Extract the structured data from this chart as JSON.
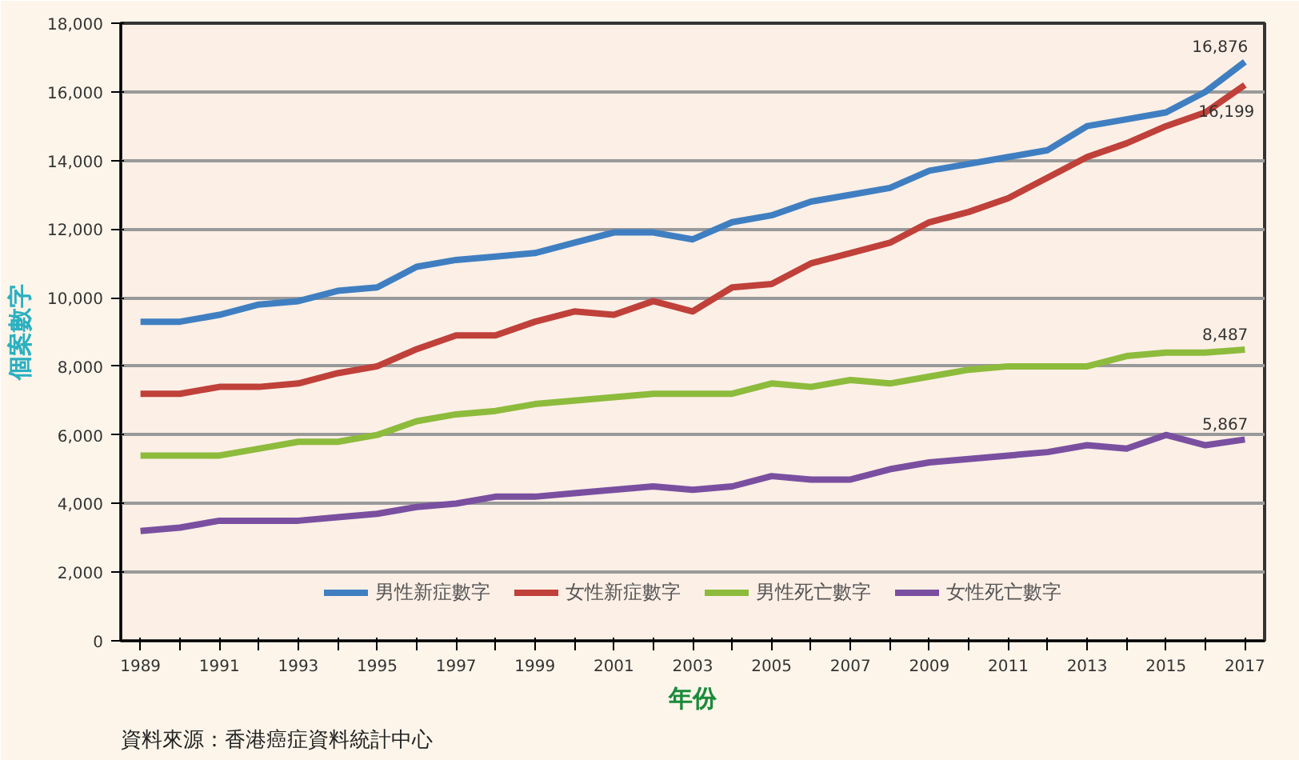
{
  "chart_data": {
    "type": "line",
    "xlabel": "年份",
    "ylabel": "個案數字",
    "annotations": [
      "資料來源：香港癌症資料統計中心"
    ],
    "categories": [
      "1989",
      null,
      "1991",
      null,
      "1993",
      null,
      "1995",
      null,
      "1997",
      null,
      "1999",
      null,
      "2001",
      null,
      "2003",
      null,
      "2005",
      null,
      "2007",
      null,
      "2009",
      null,
      "2011",
      null,
      "2013",
      null,
      "2015",
      null,
      "2017"
    ],
    "series": [
      {
        "name": "男性新症數字",
        "color": "#3f7fc1",
        "values": [
          9300,
          9300,
          9500,
          9800,
          9900,
          10200,
          10300,
          10900,
          11100,
          11200,
          11300,
          11600,
          11900,
          11900,
          11700,
          12200,
          12400,
          12800,
          13000,
          13200,
          13700,
          13900,
          14100,
          14300,
          15000,
          15200,
          15400,
          16000,
          16876
        ],
        "value_labels": [
          null,
          null,
          null,
          null,
          null,
          null,
          null,
          null,
          null,
          null,
          null,
          null,
          null,
          null,
          null,
          null,
          null,
          null,
          null,
          null,
          null,
          null,
          null,
          null,
          null,
          null,
          null,
          null,
          "16,876"
        ]
      },
      {
        "name": "女性新症數字",
        "color": "#c0403a",
        "values": [
          7200,
          7200,
          7400,
          7400,
          7500,
          7800,
          8000,
          8500,
          8900,
          8900,
          9300,
          9600,
          9500,
          9900,
          9600,
          10300,
          10400,
          11000,
          11300,
          11600,
          12200,
          12500,
          12900,
          13500,
          14100,
          14500,
          15000,
          15400,
          16199
        ],
        "value_labels": [
          null,
          null,
          null,
          null,
          null,
          null,
          null,
          null,
          null,
          null,
          null,
          null,
          null,
          null,
          null,
          null,
          null,
          null,
          null,
          null,
          null,
          null,
          null,
          null,
          null,
          null,
          null,
          null,
          "16,199"
        ]
      },
      {
        "name": "男性死亡數字",
        "color": "#8dbb3c",
        "values": [
          5400,
          5400,
          5400,
          5600,
          5800,
          5800,
          6000,
          6400,
          6600,
          6700,
          6900,
          7000,
          7100,
          7200,
          7200,
          7200,
          7500,
          7400,
          7600,
          7500,
          7700,
          7900,
          8000,
          8000,
          8000,
          8300,
          8400,
          8400,
          8487
        ],
        "value_labels": [
          null,
          null,
          null,
          null,
          null,
          null,
          null,
          null,
          null,
          null,
          null,
          null,
          null,
          null,
          null,
          null,
          null,
          null,
          null,
          null,
          null,
          null,
          null,
          null,
          null,
          null,
          null,
          null,
          "8,487"
        ]
      },
      {
        "name": "女性死亡數字",
        "color": "#7a4fa0",
        "values": [
          3200,
          3300,
          3500,
          3500,
          3500,
          3600,
          3700,
          3900,
          4000,
          4200,
          4200,
          4300,
          4400,
          4500,
          4400,
          4500,
          4800,
          4700,
          4700,
          5000,
          5200,
          5300,
          5400,
          5500,
          5700,
          5600,
          6000,
          5700,
          5867
        ],
        "value_labels": [
          null,
          null,
          null,
          null,
          null,
          null,
          null,
          null,
          null,
          null,
          null,
          null,
          null,
          null,
          null,
          null,
          null,
          null,
          null,
          null,
          null,
          null,
          null,
          null,
          null,
          null,
          null,
          null,
          "5,867"
        ]
      }
    ],
    "ylim": [
      0,
      18000
    ],
    "yticks": [
      0,
      {
        "value": 2000,
        "label": "2,000"
      },
      {
        "value": 4000,
        "label": "4,000"
      },
      {
        "value": 6000,
        "label": "6,000"
      },
      {
        "value": 8000,
        "label": "8,000"
      },
      {
        "value": 10000,
        "label": "10,000"
      },
      {
        "value": 12000,
        "label": "12,000"
      },
      {
        "value": 14000,
        "label": "14,000"
      },
      {
        "value": 16000,
        "label": "16,000"
      },
      {
        "value": 18000,
        "label": "18,000"
      }
    ],
    "grid": "y",
    "legend": "bottom",
    "line_style": "solid",
    "marker": "none"
  }
}
